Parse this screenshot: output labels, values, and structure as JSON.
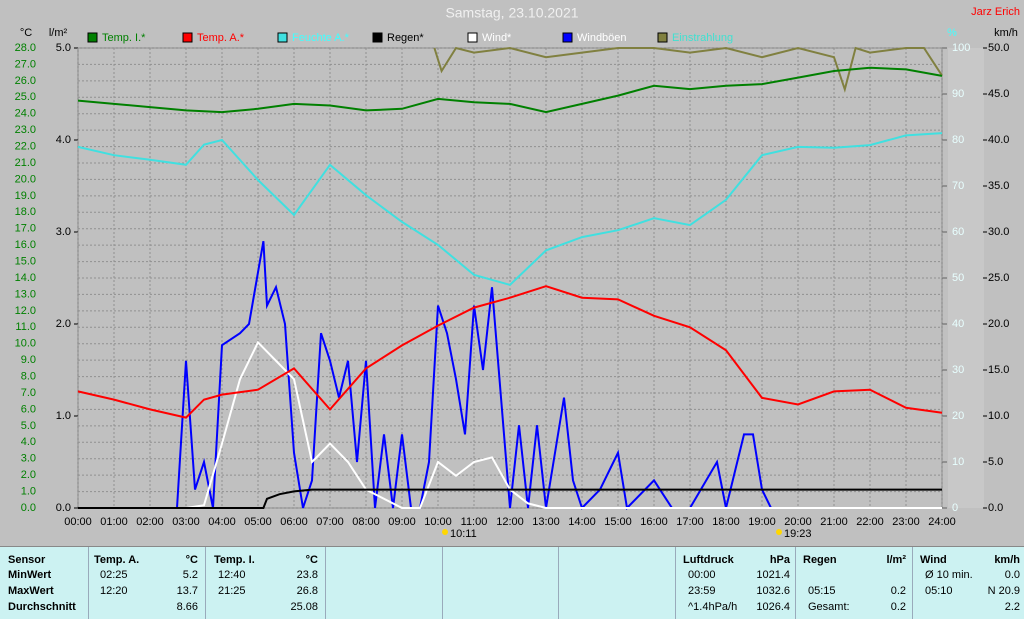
{
  "chart_data": {
    "type": "line",
    "title": "Samstag, 23.10.2021",
    "author": "Jarz Erich",
    "units": {
      "temp": "°C",
      "rain": "l/m²",
      "humidity": "%",
      "wind": "km/h"
    },
    "sun_markers": [
      "10:11",
      "19:23"
    ],
    "grid": true,
    "xlim": [
      0,
      24
    ],
    "xticks": [
      {
        "value": 0,
        "label": "00:00"
      },
      {
        "value": 1,
        "label": "01:00"
      },
      {
        "value": 2,
        "label": "02:00"
      },
      {
        "value": 3,
        "label": "03:00"
      },
      {
        "value": 4,
        "label": "04:00"
      },
      {
        "value": 5,
        "label": "05:00"
      },
      {
        "value": 6,
        "label": "06:00"
      },
      {
        "value": 7,
        "label": "07:00"
      },
      {
        "value": 8,
        "label": "08:00"
      },
      {
        "value": 9,
        "label": "09:00"
      },
      {
        "value": 10,
        "label": "10:00"
      },
      {
        "value": 11,
        "label": "11:00"
      },
      {
        "value": 12,
        "label": "12:00"
      },
      {
        "value": 13,
        "label": "13:00"
      },
      {
        "value": 14,
        "label": "14:00"
      },
      {
        "value": 15,
        "label": "15:00"
      },
      {
        "value": 16,
        "label": "16:00"
      },
      {
        "value": 17,
        "label": "17:00"
      },
      {
        "value": 18,
        "label": "18:00"
      },
      {
        "value": 19,
        "label": "19:00"
      },
      {
        "value": 20,
        "label": "20:00"
      },
      {
        "value": 21,
        "label": "21:00"
      },
      {
        "value": 22,
        "label": "22:00"
      },
      {
        "value": 23,
        "label": "23:00"
      },
      {
        "value": 24,
        "label": "24:00"
      }
    ],
    "ylim": [
      0,
      28
    ],
    "yticks": [
      {
        "value": 0,
        "label": "0.0"
      },
      {
        "value": 1,
        "label": "1.0"
      },
      {
        "value": 2,
        "label": "2.0"
      },
      {
        "value": 3,
        "label": "3.0"
      },
      {
        "value": 4,
        "label": "4.0"
      },
      {
        "value": 5,
        "label": "5.0"
      },
      {
        "value": 6,
        "label": "6.0"
      },
      {
        "value": 7,
        "label": "7.0"
      },
      {
        "value": 8,
        "label": "8.0"
      },
      {
        "value": 9,
        "label": "9.0"
      },
      {
        "value": 10,
        "label": "10.0"
      },
      {
        "value": 11,
        "label": "11.0"
      },
      {
        "value": 12,
        "label": "12.0"
      },
      {
        "value": 13,
        "label": "13.0"
      },
      {
        "value": 14,
        "label": "14.0"
      },
      {
        "value": 15,
        "label": "15.0"
      },
      {
        "value": 16,
        "label": "16.0"
      },
      {
        "value": 17,
        "label": "17.0"
      },
      {
        "value": 18,
        "label": "18.0"
      },
      {
        "value": 19,
        "label": "19.0"
      },
      {
        "value": 20,
        "label": "20.0"
      },
      {
        "value": 21,
        "label": "21.0"
      },
      {
        "value": 22,
        "label": "22.0"
      },
      {
        "value": 23,
        "label": "23.0"
      },
      {
        "value": 24,
        "label": "24.0"
      },
      {
        "value": 25,
        "label": "25.0"
      },
      {
        "value": 26,
        "label": "26.0"
      },
      {
        "value": 27,
        "label": "27.0"
      },
      {
        "value": 28,
        "label": "28.0"
      }
    ],
    "y2lim": [
      0,
      100
    ],
    "y2ticks": [
      0,
      10,
      20,
      30,
      40,
      50,
      60,
      70,
      80,
      90,
      100
    ],
    "y3lim": [
      0,
      5
    ],
    "y3ticks": [
      {
        "value": 0,
        "label": "0.0"
      },
      {
        "value": 1,
        "label": "1.0"
      },
      {
        "value": 2,
        "label": "2.0"
      },
      {
        "value": 3,
        "label": "3.0"
      },
      {
        "value": 4,
        "label": "4.0"
      },
      {
        "value": 5,
        "label": "5.0"
      }
    ],
    "y4lim": [
      0,
      50
    ],
    "y4ticks": [
      {
        "value": 0,
        "label": "0.0"
      },
      {
        "value": 5,
        "label": "5.0"
      },
      {
        "value": 10,
        "label": "10.0"
      },
      {
        "value": 15,
        "label": "15.0"
      },
      {
        "value": 20,
        "label": "20.0"
      },
      {
        "value": 25,
        "label": "25.0"
      },
      {
        "value": 30,
        "label": "30.0"
      },
      {
        "value": 35,
        "label": "35.0"
      },
      {
        "value": 40,
        "label": "40.0"
      },
      {
        "value": 45,
        "label": "45.0"
      },
      {
        "value": 50,
        "label": "50.0"
      }
    ],
    "series": [
      {
        "name": "Temp. I.*",
        "color": "#008000",
        "label_color": "#008000",
        "axis": "y",
        "x": [
          0,
          1,
          2,
          3,
          4,
          5,
          6,
          7,
          8,
          9,
          10,
          11,
          12,
          13,
          14,
          15,
          16,
          17,
          18,
          19,
          20,
          21,
          22,
          23,
          24
        ],
        "values": [
          24.8,
          24.6,
          24.4,
          24.2,
          24.1,
          24.3,
          24.6,
          24.5,
          24.2,
          24.3,
          24.9,
          24.7,
          24.6,
          24.1,
          24.6,
          25.1,
          25.7,
          25.5,
          25.7,
          25.8,
          26.2,
          26.6,
          26.8,
          26.7,
          26.3
        ]
      },
      {
        "name": "Temp. A.*",
        "color": "#ff0000",
        "label_color": "#ff0000",
        "axis": "y",
        "x": [
          0,
          1,
          2,
          3,
          3.5,
          4,
          5,
          6,
          7,
          8,
          9,
          10,
          11,
          12,
          13,
          14,
          15,
          16,
          17,
          18,
          19,
          20,
          21,
          22,
          23,
          24
        ],
        "values": [
          7.1,
          6.6,
          6.0,
          5.5,
          6.6,
          6.9,
          7.2,
          8.5,
          6.0,
          8.5,
          9.9,
          11.1,
          12.2,
          12.8,
          13.5,
          12.8,
          12.7,
          11.7,
          11.0,
          9.6,
          6.7,
          6.3,
          7.1,
          7.2,
          6.1,
          5.8
        ]
      },
      {
        "name": "Feuchte A.*",
        "color": "#40e0e0",
        "label_color": "#40ffff",
        "axis": "y2",
        "x": [
          0,
          1,
          2,
          3,
          3.5,
          4,
          5,
          6,
          7,
          8,
          9,
          10,
          11,
          12,
          13,
          14,
          15,
          16,
          17,
          18,
          19,
          20,
          21,
          22,
          23,
          24
        ],
        "values": [
          78.5,
          76.7,
          75.7,
          74.6,
          79,
          80,
          71.3,
          63.7,
          74.6,
          68,
          62.2,
          57.2,
          50.7,
          48.5,
          56,
          58.9,
          60.4,
          63,
          61.5,
          67,
          76.7,
          78.5,
          78.3,
          78.9,
          81,
          81.5
        ]
      },
      {
        "name": "Regen*",
        "color": "#000000",
        "label_color": "#000000",
        "axis": "y3",
        "x": [
          0,
          5.15,
          5.25,
          5.6,
          6,
          6.5,
          24
        ],
        "values": [
          0,
          0,
          0.1,
          0.15,
          0.18,
          0.2,
          0.2
        ]
      },
      {
        "name": "Wind*",
        "color": "#ffffff",
        "label_color": "#ffffff",
        "axis": "y4",
        "x": [
          0,
          3,
          3.5,
          4,
          4.5,
          5,
          5.5,
          6,
          6.5,
          7,
          7.5,
          8,
          9,
          9.5,
          10,
          10.5,
          11,
          11.5,
          12,
          12.5,
          13,
          14,
          24
        ],
        "values": [
          0,
          0,
          0.3,
          7,
          14,
          18,
          16,
          14,
          5,
          7,
          5,
          2,
          0,
          0,
          5,
          3.5,
          5,
          5.5,
          2,
          0.5,
          0,
          0,
          0
        ]
      },
      {
        "name": "Windböen",
        "color": "#0000ff",
        "label_color": "#ffffff",
        "axis": "y4",
        "x": [
          0,
          2.75,
          3,
          3.25,
          3.5,
          3.75,
          4,
          4.5,
          4.75,
          5.15,
          5.25,
          5.5,
          5.75,
          6,
          6.25,
          6.5,
          6.75,
          7,
          7.25,
          7.5,
          7.75,
          8,
          8.25,
          8.5,
          8.75,
          9,
          9.25,
          9.5,
          9.75,
          10,
          10.25,
          10.5,
          10.75,
          11,
          11.25,
          11.5,
          11.75,
          12,
          12.25,
          12.5,
          12.75,
          13,
          13.5,
          13.75,
          14,
          14.5,
          15,
          15.25,
          16,
          16.5,
          17,
          17.75,
          18,
          18.5,
          18.75,
          19,
          19.25,
          20,
          24
        ],
        "values": [
          0,
          0,
          16,
          2,
          5,
          0,
          17.7,
          19,
          20,
          29,
          22,
          24,
          20,
          6,
          0,
          3,
          19,
          16,
          12,
          16,
          5,
          16,
          0,
          8,
          0,
          8,
          0,
          0,
          5,
          22,
          19,
          14,
          8,
          22,
          15,
          24,
          12,
          0,
          9,
          0,
          9,
          0,
          12,
          3,
          0,
          2,
          6,
          0,
          3,
          0,
          0,
          5,
          0,
          8,
          8,
          2,
          0,
          0,
          0
        ]
      },
      {
        "name": "Einstrahlung",
        "color": "#808040",
        "label_color": "#40e0d0",
        "axis": "y2",
        "x": [
          9.9,
          10.1,
          10.5,
          11,
          12,
          13,
          14,
          15,
          16,
          17,
          18,
          19,
          20,
          21,
          21.3,
          21.6,
          22,
          23,
          23.5,
          24
        ],
        "values": [
          100,
          95,
          100,
          99,
          100,
          98,
          99,
          100,
          100,
          99,
          100,
          98,
          100,
          98,
          91,
          100,
          99,
          100,
          100,
          94
        ]
      }
    ]
  },
  "table": {
    "header": {
      "label": "Sensor",
      "temp_a": "Temp. A.",
      "temp_a_unit": "°C",
      "temp_i": "Temp. I.",
      "temp_i_unit": "°C",
      "pressure": "Luftdruck",
      "pressure_unit": "hPa",
      "rain": "Regen",
      "rain_unit": "l/m²",
      "wind": "Wind",
      "wind_unit": "km/h"
    },
    "rows": [
      {
        "label": "MinWert",
        "temp_a_time": "02:25",
        "temp_a": "5.2",
        "temp_i_time": "12:40",
        "temp_i": "23.8",
        "pressure_time": "00:00",
        "pressure": "1021.4",
        "wind_time": "Ø 10 min.",
        "wind": "0.0"
      },
      {
        "label": "MaxWert",
        "temp_a_time": "12:20",
        "temp_a": "13.7",
        "temp_i_time": "21:25",
        "temp_i": "26.8",
        "pressure_time": "23:59",
        "pressure": "1032.6",
        "rain_time": "05:15",
        "rain": "0.2",
        "wind_time": "05:10",
        "wind": "N 20.9"
      },
      {
        "label": "Durchschnitt",
        "temp_a": "8.66",
        "temp_i": "25.08",
        "pressure_time": "^1.4hPa/h",
        "pressure": "1026.4",
        "rain_time": "Gesamt:",
        "rain": "0.2",
        "wind": "2.2"
      }
    ]
  }
}
